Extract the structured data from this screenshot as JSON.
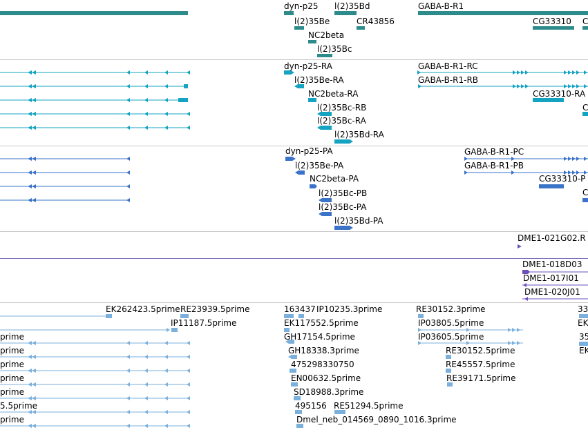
{
  "colors": {
    "gene": "#2e8b8b",
    "transcript_rna": "#15a3c2",
    "transcript_protein": "#3a73c8",
    "clone": "#6b4fbb",
    "est": "#7bb0dc",
    "separator": "#c8c8c8"
  },
  "tracks": {
    "genes": {
      "labels": [
        "dyn-p25",
        "l(2)35Bd",
        "GABA-B-R1",
        "l(2)35Be",
        "CR43856",
        "CG33310",
        "C",
        "NC2beta",
        "l(2)35Bc"
      ]
    },
    "rna": {
      "labels": [
        "dyn-p25-RA",
        "GABA-B-R1-RC",
        "l(2)35Be-RA",
        "GABA-B-R1-RB",
        "NC2beta-RA",
        "CG33310-RA",
        "l(2)35Bc-RB",
        "C",
        "l(2)35Bc-RA",
        "l(2)35Bd-RA"
      ]
    },
    "protein": {
      "labels": [
        "dyn-p25-PA",
        "l(2)35Be-PA",
        "GABA-B-R1-PC",
        "GABA-B-R1-PB",
        "NC2beta-PA",
        "CG33310-P",
        "C",
        "l(2)35Bc-PB",
        "l(2)35Bc-PA",
        "l(2)35Bd-PA"
      ]
    },
    "clone_single": {
      "labels": [
        "DME1-021G02.R"
      ]
    },
    "clones": {
      "labels": [
        "DME1-018D03",
        "DME1-017I01",
        "DME1-020J01"
      ]
    },
    "ests": {
      "labels": [
        "EK262423.5prime",
        "RE23939.5prime",
        "163437",
        "IP10235.3prime",
        "RE30152.3prime",
        "33",
        "IP11187.5prime",
        "EK117552.5prime",
        "IP03805.5prime",
        "EK",
        "prime",
        "GH17154.5prime",
        "IP03605.5prime",
        "35",
        "prime",
        "GH18338.3prime",
        "RE30152.5prime",
        "EK",
        "prime",
        "475298330750",
        "RE45557.5prime",
        "prime",
        "EN00632.5prime",
        "RE39171.5prime",
        "prime",
        "SD18988.3prime",
        "5.5prime",
        "495156",
        "RE51294.5prime",
        "prime",
        "Dmel_neb_014569_0890_1016.3prime"
      ]
    }
  }
}
